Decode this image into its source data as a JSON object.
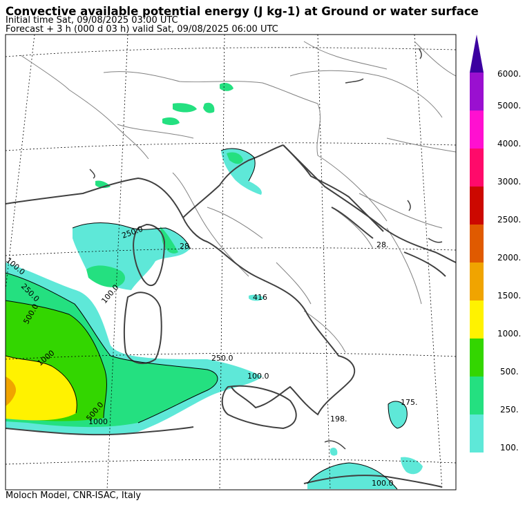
{
  "header": {
    "title": "Convective available potential energy (J kg-1) at Ground or water surface",
    "initial_time": "Initial time  Sat, 09/08/2025  03:00 UTC",
    "forecast": "Forecast +  3 h  (000 d 03 h)  valid Sat, 09/08/2025 06:00 UTC"
  },
  "footer": {
    "credit": "Moloch Model, CNR-ISAC, Italy"
  },
  "colorbar": {
    "levels": [
      {
        "label": "100.",
        "color": "#5ee8d8"
      },
      {
        "label": "250.",
        "color": "#24e080"
      },
      {
        "label": "500.",
        "color": "#33d600"
      },
      {
        "label": "1000.",
        "color": "#fff200"
      },
      {
        "label": "1500.",
        "color": "#f0a400"
      },
      {
        "label": "2000.",
        "color": "#e05a00"
      },
      {
        "label": "2500.",
        "color": "#cc0800"
      },
      {
        "label": "3000.",
        "color": "#ff0a6a"
      },
      {
        "label": "4000.",
        "color": "#ff10d0"
      },
      {
        "label": "5000.",
        "color": "#9a10d0"
      },
      {
        "label": "6000.",
        "color": "#3c00a0"
      }
    ]
  },
  "contour_labels": [
    {
      "text": "250.0"
    },
    {
      "text": "100.0"
    },
    {
      "text": "500.0"
    },
    {
      "text": "1000"
    },
    {
      "text": "250.0"
    },
    {
      "text": "100.0"
    },
    {
      "text": "100.0"
    },
    {
      "text": "28."
    },
    {
      "text": "416"
    },
    {
      "text": "175."
    },
    {
      "text": "198."
    },
    {
      "text": "28."
    },
    {
      "text": "100.0"
    },
    {
      "text": "250.0"
    },
    {
      "text": "500.0"
    },
    {
      "text": "1000"
    }
  ]
}
